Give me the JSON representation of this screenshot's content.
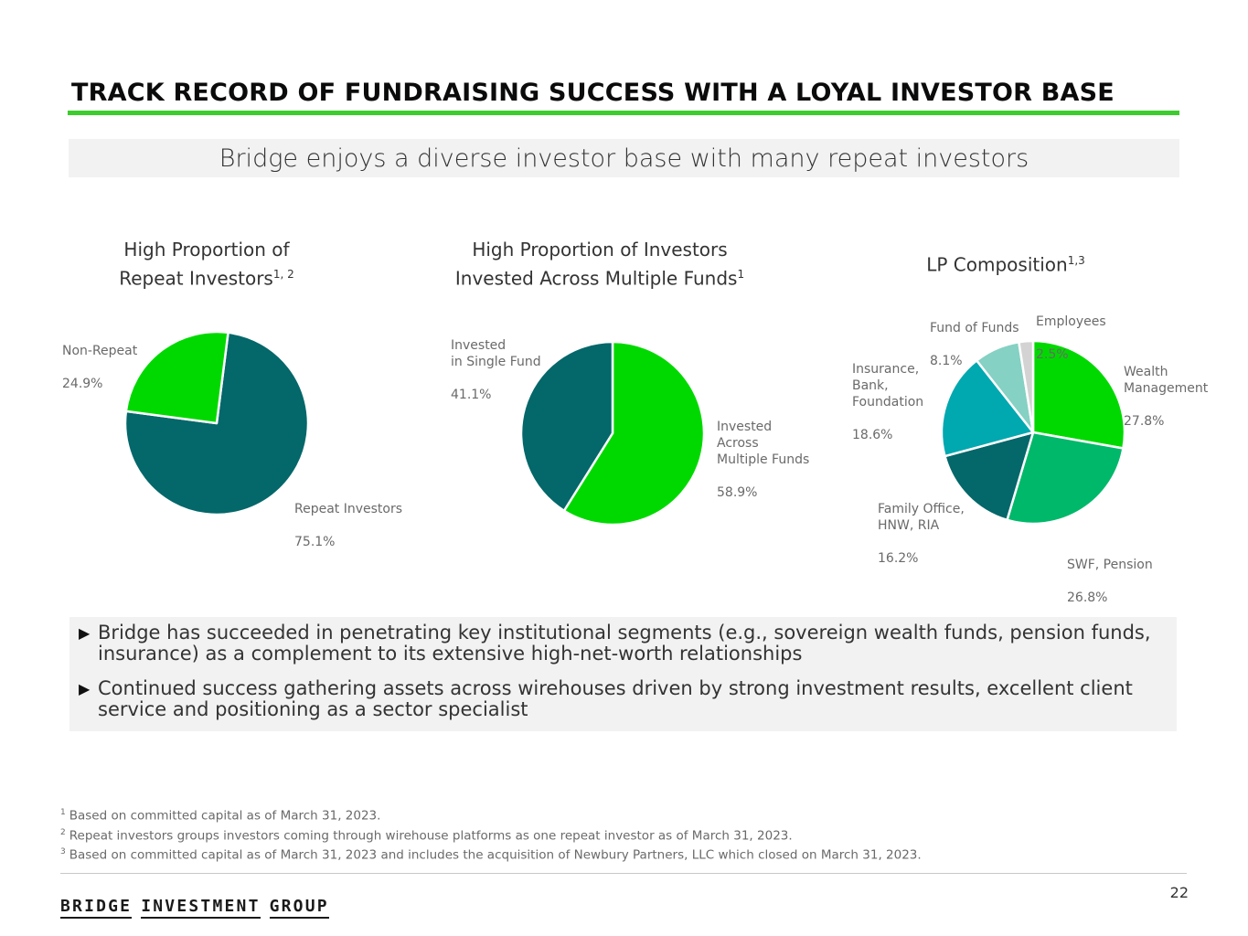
{
  "header": {
    "title": "TRACK RECORD OF FUNDRAISING SUCCESS WITH A LOYAL INVESTOR BASE",
    "subtitle": "Bridge enjoys a diverse investor base with many repeat investors"
  },
  "colors": {
    "accent_green": "#3ccc2d",
    "bright_green": "#00d900",
    "dark_teal": "#04676a",
    "medium_green": "#00b86a",
    "teal": "#00a8b0",
    "light_teal": "#85d1c3",
    "light_gray": "#d3d3d3"
  },
  "chart_data": [
    {
      "type": "pie",
      "title_lines": [
        "High Proportion of",
        "Repeat Investors"
      ],
      "title_sup": "1, 2",
      "slices": [
        {
          "label": "Repeat Investors",
          "value": 75.1,
          "value_text": "75.1%",
          "color": "#04676a"
        },
        {
          "label": "Non-Repeat",
          "value": 24.9,
          "value_text": "24.9%",
          "color": "#00d900"
        }
      ]
    },
    {
      "type": "pie",
      "title_lines": [
        "High Proportion of Investors",
        "Invested Across Multiple Funds"
      ],
      "title_sup": "1",
      "slices": [
        {
          "label": "Invested\nAcross\nMultiple Funds",
          "value": 58.9,
          "value_text": "58.9%",
          "color": "#00d900"
        },
        {
          "label": "Invested\nin Single Fund",
          "value": 41.1,
          "value_text": "41.1%",
          "color": "#04676a"
        }
      ]
    },
    {
      "type": "pie",
      "title_lines": [
        "LP Composition"
      ],
      "title_sup": "1,3",
      "slices": [
        {
          "label": "Wealth\nManagement",
          "value": 27.8,
          "value_text": "27.8%",
          "color": "#00d900"
        },
        {
          "label": "SWF, Pension",
          "value": 26.8,
          "value_text": "26.8%",
          "color": "#00b86a"
        },
        {
          "label": "Family Office,\nHNW, RIA",
          "value": 16.2,
          "value_text": "16.2%",
          "color": "#04676a"
        },
        {
          "label": "Insurance,\nBank,\nFoundation",
          "value": 18.6,
          "value_text": "18.6%",
          "color": "#00a8b0"
        },
        {
          "label": "Fund of Funds",
          "value": 8.1,
          "value_text": "8.1%",
          "color": "#85d1c3"
        },
        {
          "label": "Employees",
          "value": 2.5,
          "value_text": "2.5%",
          "color": "#d3d3d3"
        }
      ]
    }
  ],
  "bullets": [
    "Bridge has succeeded in penetrating key institutional segments (e.g., sovereign wealth funds, pension funds, insurance) as a complement to its extensive high-net-worth relationships",
    "Continued success gathering assets across wirehouses driven by strong investment results, excellent client service and positioning as a sector specialist"
  ],
  "footnotes": [
    {
      "mark": "1",
      "text": "Based on committed capital as of March 31, 2023."
    },
    {
      "mark": "2",
      "text": "Repeat investors groups investors coming through wirehouse platforms as one repeat investor as of March 31, 2023."
    },
    {
      "mark": "3",
      "text": "Based on committed capital as of March 31, 2023 and includes the acquisition of Newbury Partners, LLC which closed on March 31, 2023."
    }
  ],
  "footer": {
    "logo_words": [
      "BRIDGE",
      "INVESTMENT",
      "GROUP"
    ],
    "page_number": "22"
  }
}
